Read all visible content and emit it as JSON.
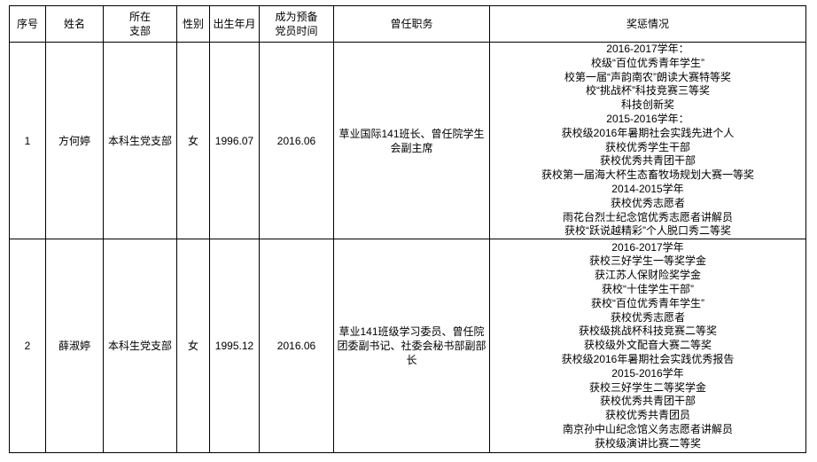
{
  "colors": {
    "border": "#000000",
    "background": "#ffffff",
    "text": "#000000"
  },
  "table": {
    "headers": {
      "no": "序号",
      "name": "姓名",
      "branch": "所在\n支部",
      "gender": "性别",
      "birth": "出生年月",
      "member_date": "成为预备\n党员时间",
      "positions": "曾任职务",
      "awards": "奖惩情况"
    },
    "rows": [
      {
        "no": "1",
        "name": "方何婷",
        "branch": "本科生党支部",
        "gender": "女",
        "birth": "1996.07",
        "member_date": "2016.06",
        "positions": "草业国际141班长、曾任院学生会副主席",
        "awards": [
          "2016-2017学年：",
          "校级“百位优秀青年学生”",
          "校第一届“声韵南农”朗读大赛特等奖",
          "校“挑战杯”科技竞赛三等奖",
          "科技创新奖",
          "2015-2016学年：",
          "获校级2016年暑期社会实践先进个人",
          "获校优秀学生干部",
          "获校优秀共青团干部",
          "获校第一届海大杯生态畜牧场规划大赛一等奖",
          "2014-2015学年",
          "获校优秀志愿者",
          "雨花台烈士纪念馆优秀志愿者讲解员",
          "获校“跃说越精彩”个人脱口秀二等奖"
        ]
      },
      {
        "no": "2",
        "name": "薛淑婷",
        "branch": "本科生党支部",
        "gender": "女",
        "birth": "1995.12",
        "member_date": "2016.06",
        "positions": "草业141班级学习委员、曾任院团委副书记、社委会秘书部副部长",
        "awards": [
          "2016-2017学年",
          "获校三好学生一等奖学金",
          "获江苏人保财险奖学金",
          "获校“十佳学生干部”",
          "获校“百位优秀青年学生”",
          "获校优秀志愿者",
          "获校级挑战杯科技竞赛二等奖",
          "获校级外文配音大赛二等奖",
          "获校级2016年暑期社会实践优秀报告",
          "2015-2016学年",
          "获校三好学生二等奖学金",
          "获校优秀共青团干部",
          "获校优秀共青团员",
          "南京孙中山纪念馆义务志愿者讲解员",
          "获校级演讲比赛二等奖"
        ]
      }
    ]
  }
}
